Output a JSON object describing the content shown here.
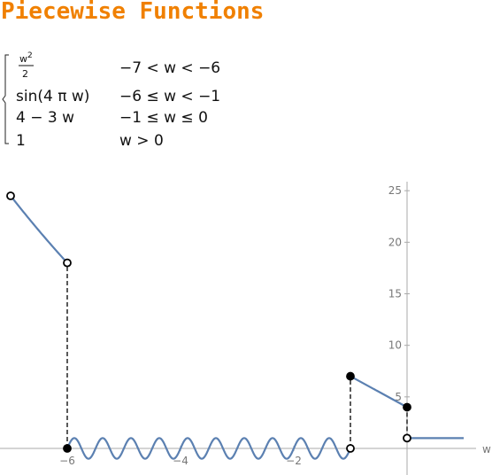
{
  "title": "Piecewise Functions",
  "definition": {
    "cases": [
      {
        "expr_num": "w",
        "expr_sup": "2",
        "expr_den": "2",
        "condition": "−7 < w < −6"
      },
      {
        "expr": "sin(4 π w)",
        "condition": "−6 ≤ w < −1"
      },
      {
        "expr": "4 − 3 w",
        "condition": "−1 ≤ w ≤ 0"
      },
      {
        "expr": "1",
        "condition": "w > 0"
      }
    ]
  },
  "colors": {
    "title": "#f08000",
    "curve": "#5b80b1",
    "axis": "#aaaaaa"
  },
  "chart_data": {
    "type": "line",
    "xlabel": "w",
    "ylabel": "",
    "xlim": [
      -7,
      1
    ],
    "ylim": [
      -0.5,
      26
    ],
    "x_ticks": [
      {
        "v": -6,
        "label": "−6"
      },
      {
        "v": -4,
        "label": "−4"
      },
      {
        "v": -2,
        "label": "−2"
      }
    ],
    "y_ticks": [
      {
        "v": 5,
        "label": "5"
      },
      {
        "v": 10,
        "label": "10"
      },
      {
        "v": 15,
        "label": "15"
      },
      {
        "v": 20,
        "label": "20"
      },
      {
        "v": 25,
        "label": "25"
      }
    ],
    "grid": false,
    "pieces": [
      {
        "name": "w^2/2",
        "fn": "half_square",
        "domain": [
          -7,
          -6
        ]
      },
      {
        "name": "sin(4πw)",
        "fn": "sin4piw",
        "domain": [
          -6,
          -1
        ]
      },
      {
        "name": "4−3w",
        "fn": "linear",
        "domain": [
          -1,
          0
        ]
      },
      {
        "name": "1",
        "fn": "const1",
        "domain": [
          0,
          1
        ]
      }
    ],
    "endpoints": [
      {
        "x": -7,
        "y": 24.5,
        "filled": false
      },
      {
        "x": -6,
        "y": 18,
        "filled": false
      },
      {
        "x": -6,
        "y": 0,
        "filled": true
      },
      {
        "x": -1,
        "y": 0,
        "filled": false
      },
      {
        "x": -1,
        "y": 7,
        "filled": true
      },
      {
        "x": 0,
        "y": 4,
        "filled": true
      },
      {
        "x": 0,
        "y": 1,
        "filled": false
      }
    ],
    "jumps": [
      {
        "x": -6,
        "y1": 0,
        "y2": 18
      },
      {
        "x": -1,
        "y1": 0,
        "y2": 7
      },
      {
        "x": 0,
        "y1": 1,
        "y2": 4
      }
    ]
  }
}
